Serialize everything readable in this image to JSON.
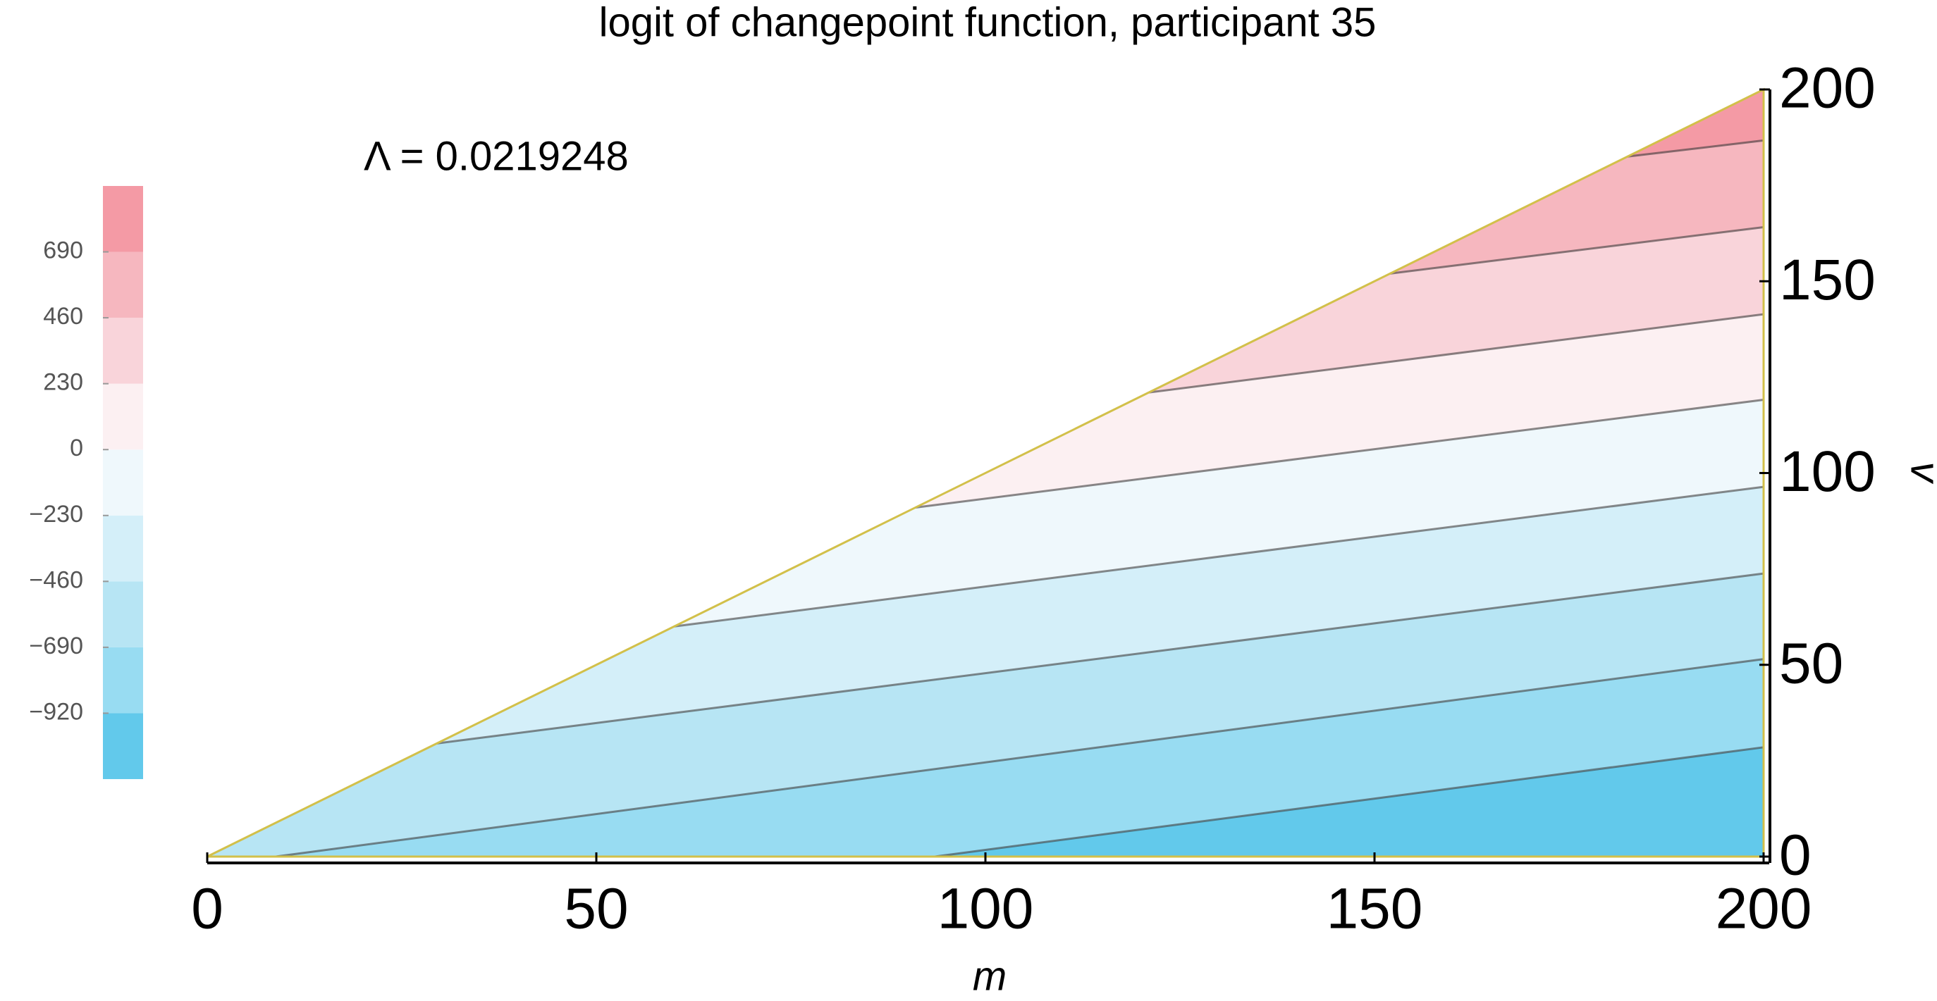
{
  "chart_data": {
    "type": "contour",
    "title": "logit of changepoint function, participant 35",
    "annotation": "Λ = 0.0219248",
    "x_label": "m",
    "y_label": "v",
    "xlim": [
      0,
      200
    ],
    "ylim": [
      0,
      200
    ],
    "xticks": [
      0,
      50,
      100,
      150,
      200
    ],
    "yticks": [
      0,
      50,
      100,
      150,
      200
    ],
    "colorbar": {
      "lim": [
        -1150,
        920
      ],
      "ticks": [
        {
          "value": -920,
          "label": "−920"
        },
        {
          "value": -690,
          "label": "−690"
        },
        {
          "value": -460,
          "label": "−460"
        },
        {
          "value": -230,
          "label": "−230"
        },
        0,
        230,
        460,
        690
      ],
      "colors": [
        "#62c9eb",
        "#98dcf2",
        "#b7e5f4",
        "#d4eff9",
        "#eff8fc",
        "#fcf0f2",
        "#f9d4da",
        "#f6b7bf",
        "#f49aa5"
      ]
    },
    "contours": [
      {
        "x": [
          93.5,
          200
        ],
        "y": [
          0,
          28.5
        ]
      },
      {
        "x": [
          8.8,
          200
        ],
        "y": [
          0,
          51.5
        ]
      },
      {
        "x": [
          29.5,
          200
        ],
        "y": [
          29.5,
          73.8
        ]
      },
      {
        "x": [
          60,
          200
        ],
        "y": [
          60,
          96.4
        ]
      },
      {
        "x": [
          91,
          200
        ],
        "y": [
          91,
          119.1
        ]
      },
      {
        "x": [
          121,
          200
        ],
        "y": [
          121,
          141.4
        ]
      },
      {
        "x": [
          152,
          200
        ],
        "y": [
          152,
          164.1
        ]
      },
      {
        "x": [
          182.5,
          200
        ],
        "y": [
          182.5,
          186.7
        ]
      }
    ]
  }
}
